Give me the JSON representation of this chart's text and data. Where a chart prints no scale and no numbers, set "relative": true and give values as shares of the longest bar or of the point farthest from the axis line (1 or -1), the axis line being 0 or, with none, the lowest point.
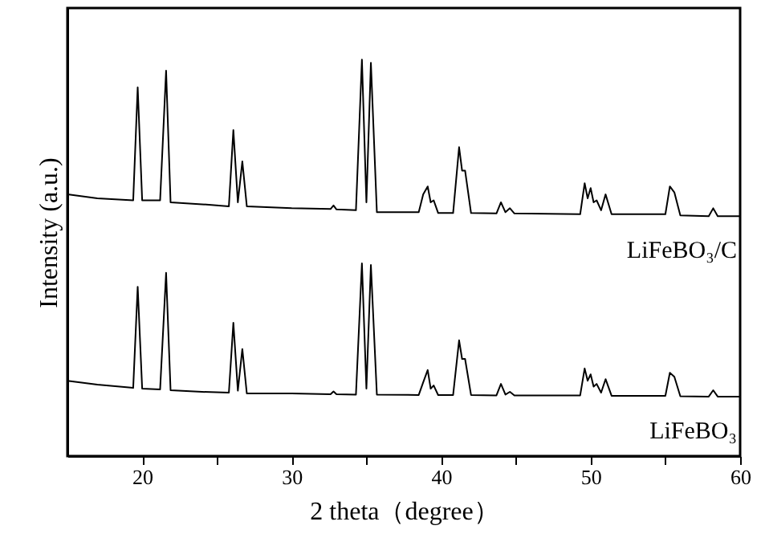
{
  "chart_data": {
    "type": "line",
    "relative": true,
    "xlabel": "2 theta（degree）",
    "ylabel": "Intensity (a.u.)",
    "xlim": [
      15,
      60
    ],
    "xticks": [
      20,
      {
        "value": 25,
        "label": null
      },
      30,
      {
        "value": 35,
        "label": null
      },
      40,
      {
        "value": 45,
        "label": null
      },
      50,
      {
        "value": 55,
        "label": null
      },
      60
    ],
    "marker": "none",
    "line_style": "solid",
    "series": [
      {
        "name": "LiFeBO₃/C",
        "color": "#000000",
        "x": [
          15,
          17,
          19.4,
          19.7,
          20.0,
          21.2,
          21.6,
          21.9,
          24,
          25.8,
          26.1,
          26.4,
          26.7,
          27.0,
          30,
          32.6,
          32.8,
          33.0,
          34.3,
          34.7,
          35.0,
          35.3,
          35.7,
          38.5,
          38.8,
          39.1,
          39.3,
          39.5,
          39.8,
          40.8,
          41.2,
          41.4,
          41.6,
          42.0,
          43.7,
          44.0,
          44.3,
          44.6,
          44.9,
          49.3,
          49.6,
          49.8,
          50.0,
          50.2,
          50.4,
          50.7,
          51.0,
          51.4,
          55.0,
          55.3,
          55.6,
          56.0,
          57.9,
          58.2,
          58.5,
          60
        ],
        "values": [
          0.66,
          0.65,
          0.645,
          0.93,
          0.645,
          0.645,
          0.972,
          0.64,
          0.635,
          0.63,
          0.822,
          0.64,
          0.743,
          0.63,
          0.625,
          0.623,
          0.632,
          0.622,
          0.62,
          1.0,
          0.64,
          0.992,
          0.615,
          0.615,
          0.66,
          0.68,
          0.64,
          0.645,
          0.613,
          0.613,
          0.779,
          0.72,
          0.72,
          0.613,
          0.612,
          0.64,
          0.615,
          0.625,
          0.612,
          0.61,
          0.688,
          0.65,
          0.676,
          0.64,
          0.645,
          0.62,
          0.66,
          0.61,
          0.61,
          0.68,
          0.665,
          0.607,
          0.605,
          0.625,
          0.605,
          0.605
        ]
      },
      {
        "name": "LiFeBO₃",
        "color": "#000000",
        "x": [
          15,
          17,
          19.4,
          19.7,
          20.0,
          21.2,
          21.6,
          21.9,
          24,
          25.8,
          26.1,
          26.4,
          26.7,
          27.0,
          30,
          32.6,
          32.8,
          33.0,
          34.3,
          34.7,
          35.0,
          35.3,
          35.7,
          38.5,
          38.8,
          39.1,
          39.3,
          39.5,
          39.8,
          40.8,
          41.2,
          41.4,
          41.6,
          42.0,
          43.7,
          44.0,
          44.3,
          44.6,
          44.9,
          49.3,
          49.6,
          49.8,
          50.0,
          50.2,
          50.4,
          50.7,
          51.0,
          51.4,
          55.0,
          55.3,
          55.6,
          56.0,
          57.9,
          58.2,
          58.5,
          60
        ],
        "values": [
          0.19,
          0.18,
          0.172,
          0.427,
          0.17,
          0.168,
          0.462,
          0.166,
          0.162,
          0.16,
          0.336,
          0.165,
          0.27,
          0.158,
          0.158,
          0.156,
          0.163,
          0.156,
          0.155,
          0.486,
          0.17,
          0.482,
          0.155,
          0.154,
          0.186,
          0.217,
          0.17,
          0.178,
          0.154,
          0.154,
          0.292,
          0.245,
          0.245,
          0.154,
          0.153,
          0.182,
          0.155,
          0.162,
          0.153,
          0.153,
          0.221,
          0.19,
          0.206,
          0.175,
          0.182,
          0.16,
          0.194,
          0.152,
          0.152,
          0.21,
          0.2,
          0.151,
          0.15,
          0.166,
          0.15,
          0.15
        ]
      }
    ]
  }
}
